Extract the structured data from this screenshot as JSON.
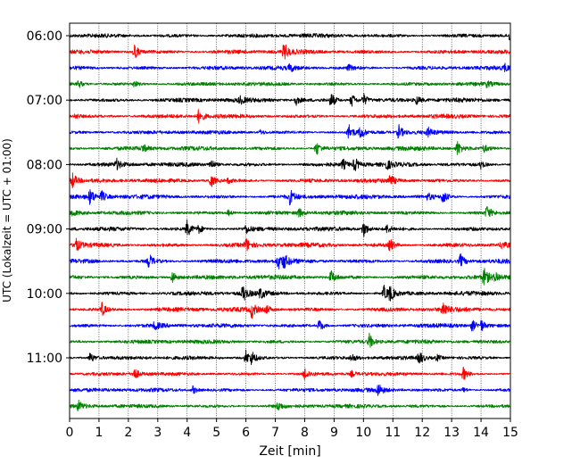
{
  "chart_data": {
    "type": "line",
    "xlabel": "Zeit  [min]",
    "ylabel": "UTC (Lokalzeit = UTC + 01:00)",
    "xlim": [
      0,
      15
    ],
    "x_ticks": [
      0,
      1,
      2,
      3,
      4,
      5,
      6,
      7,
      8,
      9,
      10,
      11,
      12,
      13,
      14,
      15
    ],
    "vertical_grid": true,
    "y_tick_labels": [
      "06:00",
      "07:00",
      "08:00",
      "09:00",
      "10:00",
      "11:00"
    ],
    "trace_colors": [
      "#000000",
      "#ff0000",
      "#0000ff",
      "#008000"
    ],
    "traces": [
      {
        "start": "06:00",
        "events": [
          [
            15.0,
            0.9
          ]
        ]
      },
      {
        "start": "06:15",
        "events": [
          [
            2.2,
            1.0
          ],
          [
            7.3,
            1.0
          ]
        ]
      },
      {
        "start": "06:30",
        "events": [
          [
            7.5,
            0.45
          ],
          [
            9.5,
            0.35
          ],
          [
            14.8,
            0.4
          ]
        ]
      },
      {
        "start": "06:45",
        "events": [
          [
            0.3,
            0.5
          ],
          [
            2.2,
            0.35
          ],
          [
            14.2,
            0.3
          ]
        ]
      },
      {
        "start": "07:00",
        "events": [
          [
            5.8,
            0.4
          ],
          [
            7.7,
            0.6
          ],
          [
            8.9,
            0.9
          ],
          [
            9.6,
            0.9
          ],
          [
            10.0,
            0.8
          ],
          [
            11.8,
            0.5
          ]
        ]
      },
      {
        "start": "07:15",
        "events": [
          [
            4.4,
            0.9
          ],
          [
            0.2,
            0.3
          ]
        ]
      },
      {
        "start": "07:30",
        "events": [
          [
            6.5,
            0.3
          ],
          [
            9.5,
            1.0
          ],
          [
            9.9,
            0.7
          ],
          [
            11.2,
            0.9
          ],
          [
            12.2,
            0.5
          ]
        ]
      },
      {
        "start": "07:45",
        "events": [
          [
            2.5,
            0.4
          ],
          [
            8.4,
            0.9
          ],
          [
            13.2,
            0.9
          ],
          [
            14.1,
            0.4
          ]
        ]
      },
      {
        "start": "08:00",
        "events": [
          [
            1.6,
            0.6
          ],
          [
            4.8,
            0.7
          ],
          [
            9.3,
            0.6
          ],
          [
            9.7,
            0.9
          ],
          [
            10.8,
            0.5
          ],
          [
            14.0,
            0.5
          ]
        ]
      },
      {
        "start": "08:15",
        "events": [
          [
            0.1,
            1.0
          ],
          [
            4.8,
            0.9
          ],
          [
            5.4,
            0.3
          ],
          [
            10.9,
            0.8
          ]
        ]
      },
      {
        "start": "08:30",
        "events": [
          [
            0.7,
            0.9
          ],
          [
            1.1,
            0.6
          ],
          [
            7.5,
            0.9
          ],
          [
            12.7,
            0.9
          ],
          [
            12.2,
            0.4
          ]
        ]
      },
      {
        "start": "08:45",
        "events": [
          [
            0.1,
            0.3
          ],
          [
            5.4,
            0.35
          ],
          [
            7.8,
            0.6
          ],
          [
            14.2,
            0.8
          ]
        ]
      },
      {
        "start": "09:00",
        "events": [
          [
            4.0,
            1.0
          ],
          [
            4.4,
            0.5
          ],
          [
            6.0,
            0.5
          ],
          [
            10.0,
            1.0
          ],
          [
            10.8,
            0.5
          ]
        ]
      },
      {
        "start": "09:15",
        "events": [
          [
            0.2,
            0.9
          ],
          [
            6.0,
            0.8
          ],
          [
            10.9,
            0.8
          ],
          [
            14.7,
            0.4
          ]
        ]
      },
      {
        "start": "09:30",
        "events": [
          [
            2.7,
            0.9
          ],
          [
            7.1,
            0.9
          ],
          [
            7.3,
            0.7
          ],
          [
            13.3,
            0.8
          ]
        ]
      },
      {
        "start": "09:45",
        "events": [
          [
            3.5,
            0.8
          ],
          [
            8.9,
            0.8
          ],
          [
            14.1,
            1.0
          ],
          [
            14.5,
            0.5
          ]
        ]
      },
      {
        "start": "10:00",
        "events": [
          [
            5.9,
            1.0
          ],
          [
            6.5,
            0.6
          ],
          [
            10.7,
            0.9
          ],
          [
            10.9,
            0.9
          ]
        ]
      },
      {
        "start": "10:15",
        "events": [
          [
            1.1,
            0.8
          ],
          [
            6.2,
            1.0
          ],
          [
            6.7,
            0.5
          ],
          [
            12.7,
            1.0
          ]
        ]
      },
      {
        "start": "10:30",
        "events": [
          [
            2.9,
            0.5
          ],
          [
            8.5,
            0.8
          ],
          [
            13.7,
            0.7
          ],
          [
            14.0,
            0.7
          ]
        ]
      },
      {
        "start": "10:45",
        "events": [
          [
            10.2,
            0.9
          ]
        ]
      },
      {
        "start": "11:00",
        "events": [
          [
            0.7,
            0.7
          ],
          [
            6.0,
            0.9
          ],
          [
            6.2,
            0.7
          ],
          [
            9.6,
            0.5
          ],
          [
            11.9,
            0.8
          ],
          [
            12.5,
            0.4
          ]
        ]
      },
      {
        "start": "11:15",
        "events": [
          [
            2.2,
            0.8
          ],
          [
            8.0,
            0.8
          ],
          [
            9.6,
            0.35
          ],
          [
            13.4,
            0.8
          ]
        ]
      },
      {
        "start": "11:30",
        "events": [
          [
            4.2,
            0.5
          ],
          [
            10.5,
            0.8
          ],
          [
            13.4,
            0.3
          ]
        ]
      },
      {
        "start": "11:45",
        "events": [
          [
            0.3,
            0.6
          ],
          [
            7.1,
            0.5
          ]
        ]
      }
    ]
  }
}
